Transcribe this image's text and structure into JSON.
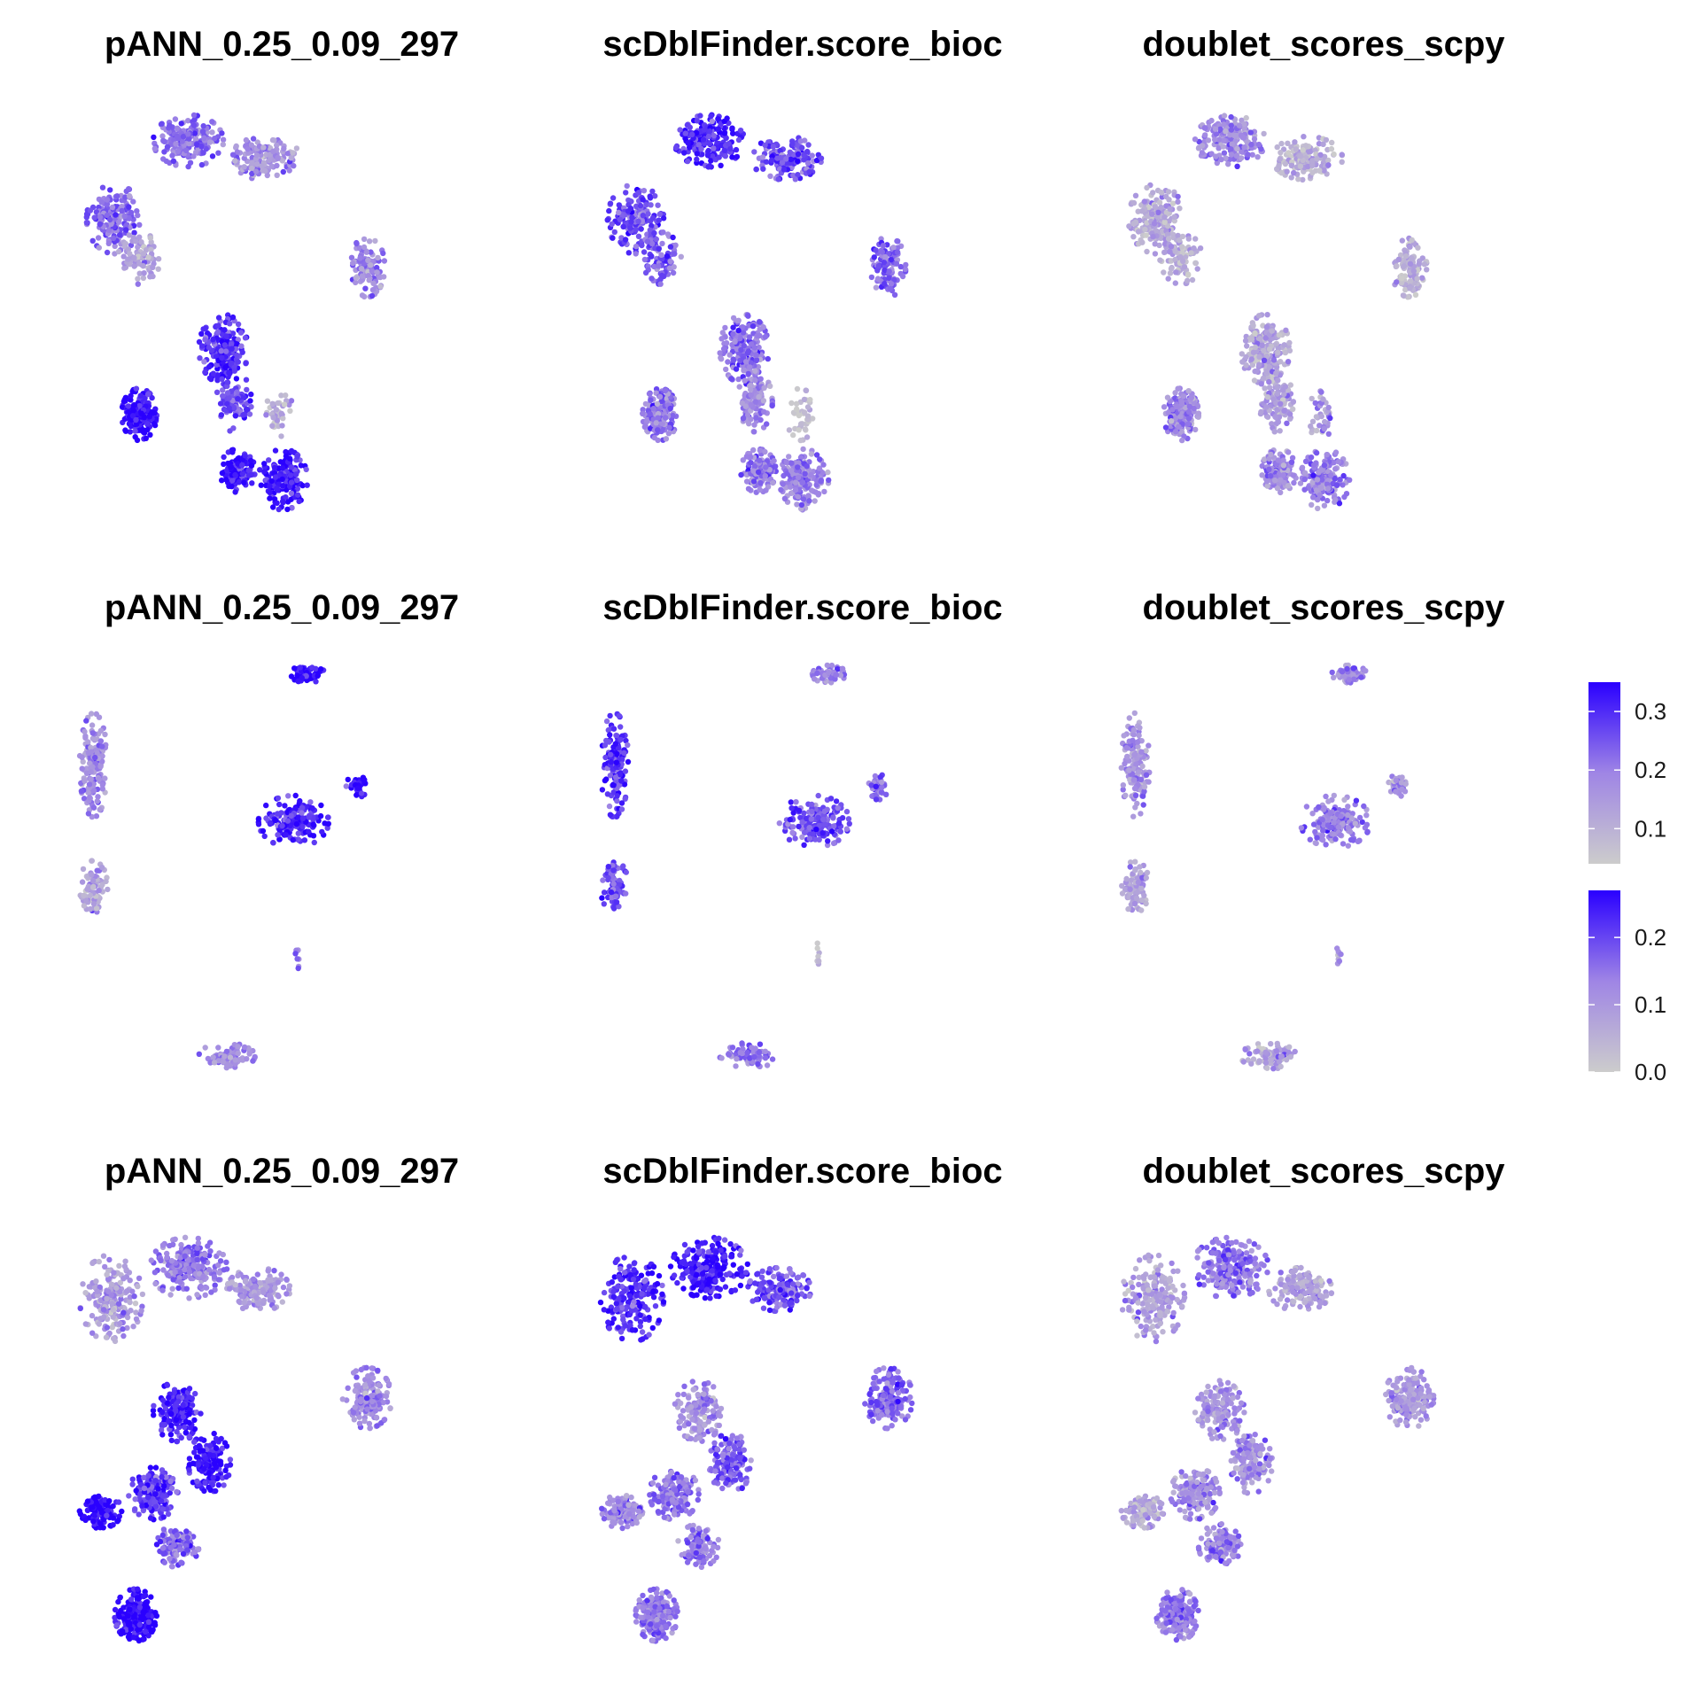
{
  "figure": {
    "rows": 3,
    "columns": 3,
    "panel_titles": [
      "pANN_0.25_0.09_297",
      "scDblFinder.score_bioc",
      "doublet_scores_scpy"
    ]
  },
  "colors": {
    "low": "#cccccc",
    "mid": "#9f85e5",
    "high": "#2a00ff",
    "background": "#ffffff"
  },
  "chart_data": {
    "type": "scatter",
    "description_type": "embedding feature plot grid",
    "color_scale": {
      "low": "#cccccc",
      "high": "#2a00ff"
    },
    "legends": [
      {
        "ticks": [
          "0.3",
          "0.2",
          "0.1"
        ],
        "values": [
          0.3,
          0.2,
          0.1
        ],
        "range": [
          0.04,
          0.35
        ]
      },
      {
        "ticks": [
          "0.2",
          "0.1",
          "0.0"
        ],
        "values": [
          0.2,
          0.1,
          0.0
        ],
        "range": [
          0.0,
          0.27
        ]
      }
    ],
    "panels": [
      {
        "row": 1,
        "col": 1,
        "title": "pANN_0.25_0.09_297",
        "legend": 1,
        "clusters": [
          {
            "x": 0.15,
            "y": 0.28,
            "rx": 0.08,
            "ry": 0.08,
            "n": 170,
            "score": 0.6
          },
          {
            "x": 0.36,
            "y": 0.1,
            "rx": 0.1,
            "ry": 0.06,
            "n": 190,
            "score": 0.6
          },
          {
            "x": 0.58,
            "y": 0.14,
            "rx": 0.1,
            "ry": 0.05,
            "n": 150,
            "score": 0.4
          },
          {
            "x": 0.22,
            "y": 0.37,
            "rx": 0.06,
            "ry": 0.06,
            "n": 90,
            "score": 0.3
          },
          {
            "x": 0.87,
            "y": 0.39,
            "rx": 0.05,
            "ry": 0.07,
            "n": 110,
            "score": 0.45
          },
          {
            "x": 0.22,
            "y": 0.73,
            "rx": 0.05,
            "ry": 0.06,
            "n": 190,
            "score": 0.98
          },
          {
            "x": 0.46,
            "y": 0.58,
            "rx": 0.07,
            "ry": 0.08,
            "n": 200,
            "score": 0.85
          },
          {
            "x": 0.49,
            "y": 0.7,
            "rx": 0.05,
            "ry": 0.07,
            "n": 110,
            "score": 0.72
          },
          {
            "x": 0.5,
            "y": 0.86,
            "rx": 0.05,
            "ry": 0.05,
            "n": 130,
            "score": 0.9
          },
          {
            "x": 0.63,
            "y": 0.88,
            "rx": 0.07,
            "ry": 0.07,
            "n": 170,
            "score": 0.92
          },
          {
            "x": 0.62,
            "y": 0.73,
            "rx": 0.04,
            "ry": 0.06,
            "n": 40,
            "score": 0.2
          }
        ]
      },
      {
        "row": 1,
        "col": 2,
        "title": "scDblFinder.score_bioc",
        "legend": 1,
        "clusters": [
          {
            "x": 0.15,
            "y": 0.28,
            "rx": 0.08,
            "ry": 0.08,
            "n": 170,
            "score": 0.75
          },
          {
            "x": 0.36,
            "y": 0.1,
            "rx": 0.1,
            "ry": 0.06,
            "n": 190,
            "score": 0.85
          },
          {
            "x": 0.58,
            "y": 0.14,
            "rx": 0.1,
            "ry": 0.05,
            "n": 150,
            "score": 0.7
          },
          {
            "x": 0.22,
            "y": 0.37,
            "rx": 0.06,
            "ry": 0.06,
            "n": 90,
            "score": 0.65
          },
          {
            "x": 0.87,
            "y": 0.39,
            "rx": 0.05,
            "ry": 0.07,
            "n": 110,
            "score": 0.6
          },
          {
            "x": 0.22,
            "y": 0.73,
            "rx": 0.05,
            "ry": 0.06,
            "n": 190,
            "score": 0.55
          },
          {
            "x": 0.46,
            "y": 0.58,
            "rx": 0.07,
            "ry": 0.08,
            "n": 200,
            "score": 0.6
          },
          {
            "x": 0.49,
            "y": 0.7,
            "rx": 0.05,
            "ry": 0.07,
            "n": 110,
            "score": 0.45
          },
          {
            "x": 0.5,
            "y": 0.86,
            "rx": 0.05,
            "ry": 0.05,
            "n": 130,
            "score": 0.55
          },
          {
            "x": 0.63,
            "y": 0.88,
            "rx": 0.07,
            "ry": 0.07,
            "n": 170,
            "score": 0.5
          },
          {
            "x": 0.62,
            "y": 0.73,
            "rx": 0.04,
            "ry": 0.06,
            "n": 40,
            "score": 0.05
          }
        ]
      },
      {
        "row": 1,
        "col": 3,
        "title": "doublet_scores_scpy",
        "legend": 1,
        "clusters": [
          {
            "x": 0.15,
            "y": 0.28,
            "rx": 0.08,
            "ry": 0.08,
            "n": 170,
            "score": 0.25
          },
          {
            "x": 0.36,
            "y": 0.1,
            "rx": 0.1,
            "ry": 0.06,
            "n": 190,
            "score": 0.45
          },
          {
            "x": 0.58,
            "y": 0.14,
            "rx": 0.1,
            "ry": 0.05,
            "n": 150,
            "score": 0.2
          },
          {
            "x": 0.22,
            "y": 0.37,
            "rx": 0.06,
            "ry": 0.06,
            "n": 90,
            "score": 0.2
          },
          {
            "x": 0.87,
            "y": 0.39,
            "rx": 0.05,
            "ry": 0.07,
            "n": 110,
            "score": 0.2
          },
          {
            "x": 0.22,
            "y": 0.73,
            "rx": 0.05,
            "ry": 0.06,
            "n": 190,
            "score": 0.45
          },
          {
            "x": 0.46,
            "y": 0.58,
            "rx": 0.07,
            "ry": 0.08,
            "n": 200,
            "score": 0.25
          },
          {
            "x": 0.49,
            "y": 0.7,
            "rx": 0.05,
            "ry": 0.07,
            "n": 110,
            "score": 0.3
          },
          {
            "x": 0.5,
            "y": 0.86,
            "rx": 0.05,
            "ry": 0.05,
            "n": 130,
            "score": 0.45
          },
          {
            "x": 0.63,
            "y": 0.88,
            "rx": 0.07,
            "ry": 0.07,
            "n": 170,
            "score": 0.5
          },
          {
            "x": 0.62,
            "y": 0.73,
            "rx": 0.04,
            "ry": 0.06,
            "n": 40,
            "score": 0.35
          }
        ]
      },
      {
        "row": 2,
        "col": 1,
        "title": "pANN_0.25_0.09_297",
        "legend": 1,
        "clusters": [
          {
            "x": 0.7,
            "y": 0.03,
            "rx": 0.05,
            "ry": 0.02,
            "n": 60,
            "score": 0.98
          },
          {
            "x": 0.09,
            "y": 0.24,
            "rx": 0.04,
            "ry": 0.12,
            "n": 150,
            "score": 0.45
          },
          {
            "x": 0.09,
            "y": 0.52,
            "rx": 0.04,
            "ry": 0.06,
            "n": 80,
            "score": 0.3
          },
          {
            "x": 0.66,
            "y": 0.37,
            "rx": 0.1,
            "ry": 0.06,
            "n": 170,
            "score": 0.85
          },
          {
            "x": 0.84,
            "y": 0.29,
            "rx": 0.03,
            "ry": 0.03,
            "n": 40,
            "score": 0.95
          },
          {
            "x": 0.67,
            "y": 0.68,
            "rx": 0.01,
            "ry": 0.03,
            "n": 8,
            "score": 0.5
          },
          {
            "x": 0.47,
            "y": 0.91,
            "rx": 0.08,
            "ry": 0.03,
            "n": 80,
            "score": 0.45
          }
        ]
      },
      {
        "row": 2,
        "col": 2,
        "title": "scDblFinder.score_bioc",
        "legend": 1,
        "clusters": [
          {
            "x": 0.7,
            "y": 0.03,
            "rx": 0.05,
            "ry": 0.02,
            "n": 60,
            "score": 0.5
          },
          {
            "x": 0.09,
            "y": 0.24,
            "rx": 0.04,
            "ry": 0.12,
            "n": 150,
            "score": 0.8
          },
          {
            "x": 0.09,
            "y": 0.52,
            "rx": 0.04,
            "ry": 0.06,
            "n": 80,
            "score": 0.7
          },
          {
            "x": 0.66,
            "y": 0.37,
            "rx": 0.1,
            "ry": 0.06,
            "n": 170,
            "score": 0.7
          },
          {
            "x": 0.84,
            "y": 0.29,
            "rx": 0.03,
            "ry": 0.03,
            "n": 40,
            "score": 0.55
          },
          {
            "x": 0.67,
            "y": 0.68,
            "rx": 0.01,
            "ry": 0.03,
            "n": 8,
            "score": 0.15
          },
          {
            "x": 0.47,
            "y": 0.91,
            "rx": 0.08,
            "ry": 0.03,
            "n": 80,
            "score": 0.55
          }
        ]
      },
      {
        "row": 2,
        "col": 3,
        "title": "doublet_scores_scpy",
        "legend": 1,
        "clusters": [
          {
            "x": 0.7,
            "y": 0.03,
            "rx": 0.05,
            "ry": 0.02,
            "n": 60,
            "score": 0.4
          },
          {
            "x": 0.09,
            "y": 0.24,
            "rx": 0.04,
            "ry": 0.12,
            "n": 150,
            "score": 0.4
          },
          {
            "x": 0.09,
            "y": 0.52,
            "rx": 0.04,
            "ry": 0.06,
            "n": 80,
            "score": 0.3
          },
          {
            "x": 0.66,
            "y": 0.37,
            "rx": 0.1,
            "ry": 0.06,
            "n": 170,
            "score": 0.5
          },
          {
            "x": 0.84,
            "y": 0.29,
            "rx": 0.03,
            "ry": 0.03,
            "n": 40,
            "score": 0.4
          },
          {
            "x": 0.67,
            "y": 0.68,
            "rx": 0.01,
            "ry": 0.03,
            "n": 8,
            "score": 0.4
          },
          {
            "x": 0.47,
            "y": 0.91,
            "rx": 0.08,
            "ry": 0.03,
            "n": 80,
            "score": 0.3
          }
        ]
      },
      {
        "row": 3,
        "col": 1,
        "title": "pANN_0.25_0.09_297",
        "legend": 2,
        "clusters": [
          {
            "x": 0.14,
            "y": 0.17,
            "rx": 0.09,
            "ry": 0.1,
            "n": 200,
            "score": 0.35
          },
          {
            "x": 0.36,
            "y": 0.1,
            "rx": 0.11,
            "ry": 0.07,
            "n": 220,
            "score": 0.55
          },
          {
            "x": 0.56,
            "y": 0.15,
            "rx": 0.09,
            "ry": 0.05,
            "n": 150,
            "score": 0.35
          },
          {
            "x": 0.87,
            "y": 0.4,
            "rx": 0.07,
            "ry": 0.07,
            "n": 170,
            "score": 0.45
          },
          {
            "x": 0.33,
            "y": 0.43,
            "rx": 0.07,
            "ry": 0.07,
            "n": 150,
            "score": 0.9
          },
          {
            "x": 0.42,
            "y": 0.55,
            "rx": 0.06,
            "ry": 0.07,
            "n": 150,
            "score": 0.9
          },
          {
            "x": 0.26,
            "y": 0.62,
            "rx": 0.07,
            "ry": 0.06,
            "n": 160,
            "score": 0.8
          },
          {
            "x": 0.11,
            "y": 0.66,
            "rx": 0.06,
            "ry": 0.04,
            "n": 110,
            "score": 1.0
          },
          {
            "x": 0.33,
            "y": 0.74,
            "rx": 0.06,
            "ry": 0.05,
            "n": 120,
            "score": 0.6
          },
          {
            "x": 0.21,
            "y": 0.9,
            "rx": 0.06,
            "ry": 0.06,
            "n": 190,
            "score": 1.0
          }
        ]
      },
      {
        "row": 3,
        "col": 2,
        "title": "scDblFinder.score_bioc",
        "legend": 2,
        "clusters": [
          {
            "x": 0.14,
            "y": 0.17,
            "rx": 0.09,
            "ry": 0.1,
            "n": 200,
            "score": 0.85
          },
          {
            "x": 0.36,
            "y": 0.1,
            "rx": 0.11,
            "ry": 0.07,
            "n": 220,
            "score": 0.9
          },
          {
            "x": 0.56,
            "y": 0.15,
            "rx": 0.09,
            "ry": 0.05,
            "n": 150,
            "score": 0.7
          },
          {
            "x": 0.87,
            "y": 0.4,
            "rx": 0.07,
            "ry": 0.07,
            "n": 170,
            "score": 0.6
          },
          {
            "x": 0.33,
            "y": 0.43,
            "rx": 0.07,
            "ry": 0.07,
            "n": 150,
            "score": 0.4
          },
          {
            "x": 0.42,
            "y": 0.55,
            "rx": 0.06,
            "ry": 0.07,
            "n": 150,
            "score": 0.65
          },
          {
            "x": 0.26,
            "y": 0.62,
            "rx": 0.07,
            "ry": 0.06,
            "n": 160,
            "score": 0.55
          },
          {
            "x": 0.11,
            "y": 0.66,
            "rx": 0.06,
            "ry": 0.04,
            "n": 110,
            "score": 0.45
          },
          {
            "x": 0.33,
            "y": 0.74,
            "rx": 0.06,
            "ry": 0.05,
            "n": 120,
            "score": 0.55
          },
          {
            "x": 0.21,
            "y": 0.9,
            "rx": 0.06,
            "ry": 0.06,
            "n": 190,
            "score": 0.55
          }
        ]
      },
      {
        "row": 3,
        "col": 3,
        "title": "doublet_scores_scpy",
        "legend": 2,
        "clusters": [
          {
            "x": 0.14,
            "y": 0.17,
            "rx": 0.09,
            "ry": 0.1,
            "n": 200,
            "score": 0.3
          },
          {
            "x": 0.36,
            "y": 0.1,
            "rx": 0.11,
            "ry": 0.07,
            "n": 220,
            "score": 0.55
          },
          {
            "x": 0.56,
            "y": 0.15,
            "rx": 0.09,
            "ry": 0.05,
            "n": 150,
            "score": 0.3
          },
          {
            "x": 0.87,
            "y": 0.4,
            "rx": 0.07,
            "ry": 0.07,
            "n": 170,
            "score": 0.35
          },
          {
            "x": 0.33,
            "y": 0.43,
            "rx": 0.07,
            "ry": 0.07,
            "n": 150,
            "score": 0.4
          },
          {
            "x": 0.42,
            "y": 0.55,
            "rx": 0.06,
            "ry": 0.07,
            "n": 150,
            "score": 0.4
          },
          {
            "x": 0.26,
            "y": 0.62,
            "rx": 0.07,
            "ry": 0.06,
            "n": 160,
            "score": 0.45
          },
          {
            "x": 0.11,
            "y": 0.66,
            "rx": 0.06,
            "ry": 0.04,
            "n": 110,
            "score": 0.25
          },
          {
            "x": 0.33,
            "y": 0.74,
            "rx": 0.06,
            "ry": 0.05,
            "n": 120,
            "score": 0.45
          },
          {
            "x": 0.21,
            "y": 0.9,
            "rx": 0.06,
            "ry": 0.06,
            "n": 190,
            "score": 0.55
          }
        ]
      }
    ]
  }
}
